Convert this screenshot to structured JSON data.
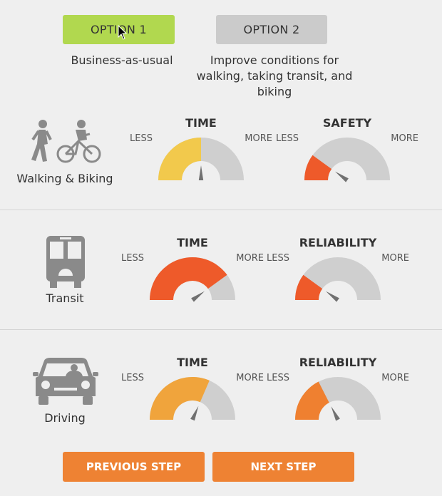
{
  "options": [
    {
      "label": "OPTION 1",
      "description": "Business-as-usual",
      "color": "#b1d84f",
      "selected": true
    },
    {
      "label": "OPTION 2",
      "description": "Improve conditions for walking, taking transit, and biking",
      "color": "#cbcbcb",
      "selected": false
    }
  ],
  "modes": [
    {
      "name": "Walking & Biking",
      "icon": "walking-biking-icon",
      "gauges": [
        {
          "title": "TIME",
          "less": "LESS",
          "more": "MORE",
          "value": 0.5,
          "color": "#f2c94c"
        },
        {
          "title": "SAFETY",
          "less": "LESS",
          "more": "MORE",
          "value": 0.2,
          "color": "#ee5a2a"
        }
      ]
    },
    {
      "name": "Transit",
      "icon": "bus-icon",
      "gauges": [
        {
          "title": "TIME",
          "less": "LESS",
          "more": "MORE",
          "value": 0.8,
          "color": "#ee5a2a"
        },
        {
          "title": "RELIABILITY",
          "less": "LESS",
          "more": "MORE",
          "value": 0.2,
          "color": "#ee5a2a"
        }
      ]
    },
    {
      "name": "Driving",
      "icon": "car-icon",
      "gauges": [
        {
          "title": "TIME",
          "less": "LESS",
          "more": "MORE",
          "value": 0.63,
          "color": "#f0a43c"
        },
        {
          "title": "RELIABILITY",
          "less": "LESS",
          "more": "MORE",
          "value": 0.35,
          "color": "#ef8030"
        }
      ]
    }
  ],
  "actions": {
    "previous": "PREVIOUS STEP",
    "next": "NEXT STEP"
  },
  "colors": {
    "gauge_track": "#cfcfcf",
    "needle": "#707070",
    "action_button": "#ee8233",
    "background": "#efefef"
  }
}
